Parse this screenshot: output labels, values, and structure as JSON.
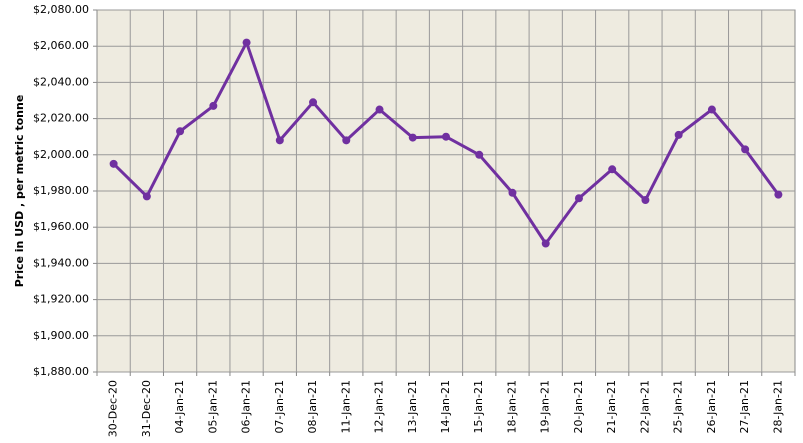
{
  "chart_data": {
    "type": "line",
    "y_label": "Price in USD , per metric tonne",
    "categories": [
      "30-Dec-20",
      "31-Dec-20",
      "04-Jan-21",
      "05-Jan-21",
      "06-Jan-21",
      "07-Jan-21",
      "08-Jan-21",
      "11-Jan-21",
      "12-Jan-21",
      "13-Jan-21",
      "14-Jan-21",
      "15-Jan-21",
      "18-Jan-21",
      "19-Jan-21",
      "20-Jan-21",
      "21-Jan-21",
      "22-Jan-21",
      "25-Jan-21",
      "26-Jan-21",
      "27-Jan-21",
      "28-Jan-21"
    ],
    "series": [
      {
        "color": "#7030a0",
        "values": [
          1995,
          1977,
          2013,
          2027,
          2062,
          2008,
          2029,
          2008,
          2025,
          2009.5,
          2010,
          2000,
          1979,
          1951,
          1976,
          1992,
          1975,
          2011,
          2025,
          2003,
          1978
        ]
      }
    ],
    "ylim": [
      1880,
      2080
    ],
    "yticks": [
      {
        "value": 1880,
        "label": "$1,880.00"
      },
      {
        "value": 1900,
        "label": "$1,900.00"
      },
      {
        "value": 1920,
        "label": "$1,920.00"
      },
      {
        "value": 1940,
        "label": "$1,940.00"
      },
      {
        "value": 1960,
        "label": "$1,960.00"
      },
      {
        "value": 1980,
        "label": "$1,980.00"
      },
      {
        "value": 2000,
        "label": "$2,000.00"
      },
      {
        "value": 2020,
        "label": "$2,020.00"
      },
      {
        "value": 2040,
        "label": "$2,040.00"
      },
      {
        "value": 2060,
        "label": "$2,060.00"
      },
      {
        "value": 2080,
        "label": "$2,080.00"
      }
    ],
    "grid": true
  }
}
